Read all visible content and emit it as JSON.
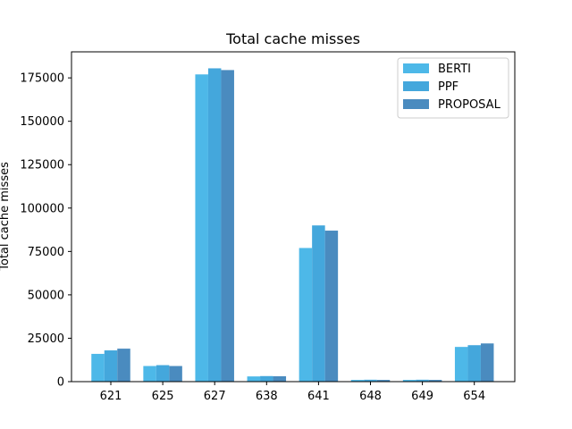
{
  "chart_data": {
    "type": "bar",
    "title": "Total cache misses",
    "xlabel": "",
    "ylabel": "Total cache misses",
    "categories": [
      "621",
      "625",
      "627",
      "638",
      "641",
      "648",
      "649",
      "654"
    ],
    "series": [
      {
        "name": "BERTI",
        "color": "#4db8e8",
        "values": [
          16000,
          9000,
          177000,
          3000,
          77000,
          1000,
          1000,
          20000
        ]
      },
      {
        "name": "PPF",
        "color": "#44a7dc",
        "values": [
          18000,
          9500,
          180500,
          3200,
          90000,
          1100,
          1100,
          21000
        ]
      },
      {
        "name": "PROPOSAL",
        "color": "#4a8bbf",
        "values": [
          19000,
          9000,
          179500,
          3100,
          87000,
          1000,
          1000,
          22000
        ]
      }
    ],
    "ylim": [
      0,
      190000
    ],
    "yticks": [
      0,
      25000,
      50000,
      75000,
      100000,
      125000,
      150000,
      175000
    ],
    "grid": false,
    "legend_position": "top-right"
  }
}
